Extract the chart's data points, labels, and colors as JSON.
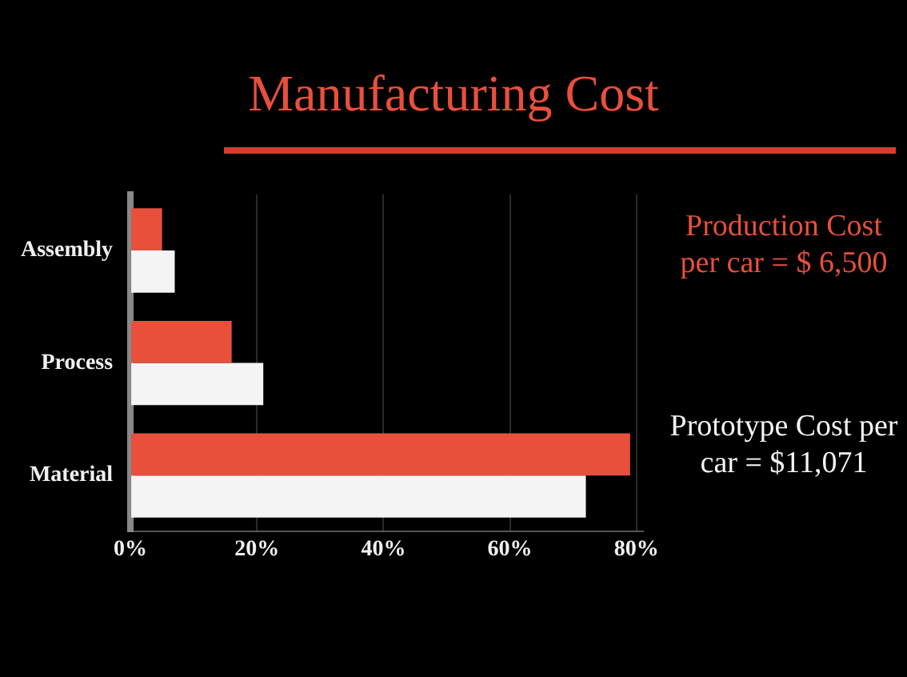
{
  "chart_data": {
    "type": "bar",
    "orientation": "horizontal",
    "title": "Manufacturing Cost",
    "categories": [
      "Assembly",
      "Process",
      "Material"
    ],
    "series": [
      {
        "color": "#e8503c",
        "values": [
          5,
          16,
          79
        ]
      },
      {
        "color": "#f4f4f4",
        "values": [
          7,
          21,
          72
        ]
      }
    ],
    "xlim": [
      0,
      81
    ],
    "xticks": [
      {
        "value": 0,
        "label": "0%"
      },
      {
        "value": 20,
        "label": "20%"
      },
      {
        "value": 40,
        "label": "40%"
      },
      {
        "value": 60,
        "label": "60%"
      },
      {
        "value": 80,
        "label": "80%"
      }
    ],
    "grid": "x",
    "legend": false,
    "annotations": [
      "Production Cost per car = $ 6,500",
      "Prototype Cost per car = $11,071"
    ]
  }
}
